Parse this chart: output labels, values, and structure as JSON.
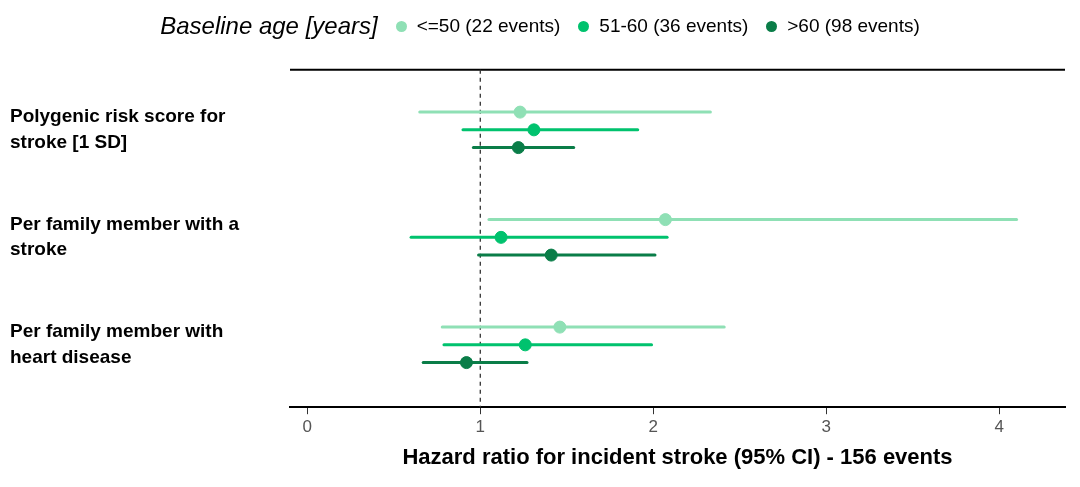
{
  "chart_data": {
    "type": "scatter",
    "orientation": "horizontal",
    "xlabel": "Hazard ratio for incident stroke (95% CI) - 156 events",
    "legend_title": "Baseline age [years]",
    "legend": "top",
    "grid": false,
    "marker": "circle",
    "categories": [
      "Polygenic risk score for stroke [1 SD]",
      "Per family member with a stroke",
      "Per family member with heart disease"
    ],
    "xlim": [
      -0.1,
      4.38
    ],
    "xticks": [
      0,
      1,
      2,
      3,
      4
    ],
    "series": [
      {
        "name": "<=50 (22 events)",
        "color": "#8fe0b5",
        "values": [
          1.23,
          2.07,
          1.46
        ],
        "errors": [
          [
            0.65,
            2.33
          ],
          [
            1.05,
            4.1
          ],
          [
            0.78,
            2.41
          ]
        ]
      },
      {
        "name": "51-60 (36 events)",
        "color": "#00c26e",
        "values": [
          1.31,
          1.12,
          1.26
        ],
        "errors": [
          [
            0.9,
            1.91
          ],
          [
            0.6,
            2.08
          ],
          [
            0.79,
            1.99
          ]
        ]
      },
      {
        "name": ">60 (98 events)",
        "color": "#0a7d48",
        "values": [
          1.22,
          1.41,
          0.92
        ],
        "errors": [
          [
            0.96,
            1.54
          ],
          [
            0.99,
            2.01
          ],
          [
            0.67,
            1.27
          ]
        ]
      }
    ],
    "ref_lines": [
      {
        "axis": "x",
        "value": 1,
        "line_style": "dashed"
      }
    ]
  }
}
